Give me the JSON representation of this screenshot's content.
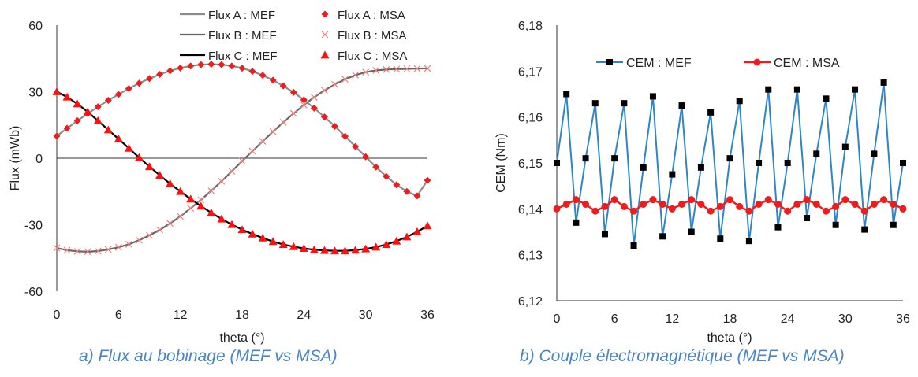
{
  "captions": {
    "a": "a) Flux au bobinage (MEF vs MSA)",
    "b": "b) Couple électromagnétique (MEF vs MSA)"
  },
  "chart_data": [
    {
      "type": "line",
      "xlabel": "theta (°)",
      "ylabel": "Flux (mWb)",
      "xlim": [
        0,
        36
      ],
      "ylim": [
        -60,
        60
      ],
      "xticks": [
        "0",
        "6",
        "12",
        "18",
        "24",
        "30",
        "36"
      ],
      "yticks": [
        "-60",
        "-30",
        "0",
        "30",
        "60"
      ],
      "legend_position": "top-right",
      "x": [
        0,
        1,
        2,
        3,
        4,
        5,
        6,
        7,
        8,
        9,
        10,
        11,
        12,
        13,
        14,
        15,
        16,
        17,
        18,
        19,
        20,
        21,
        22,
        23,
        24,
        25,
        26,
        27,
        28,
        29,
        30,
        31,
        32,
        33,
        34,
        35,
        36
      ],
      "series": [
        {
          "name": "Flux A : MEF",
          "style": "line",
          "color": "#8c8c8c",
          "values": [
            10.0,
            13.5,
            16.9,
            20.1,
            23.2,
            26.1,
            28.8,
            31.4,
            33.8,
            35.9,
            37.8,
            39.4,
            40.7,
            41.6,
            42.2,
            42.4,
            42.2,
            41.6,
            40.6,
            39.2,
            37.4,
            35.2,
            32.6,
            29.7,
            26.3,
            22.6,
            18.6,
            14.4,
            9.9,
            5.3,
            0.6,
            -4.0,
            -8.2,
            -12.0,
            -15.0,
            -17.0,
            -10.0
          ]
        },
        {
          "name": "Flux B : MEF",
          "style": "line",
          "color": "#666666",
          "values": [
            -40.5,
            -41.5,
            -42.0,
            -42.2,
            -41.9,
            -41.2,
            -40.2,
            -38.8,
            -37.0,
            -34.8,
            -32.3,
            -29.4,
            -26.2,
            -22.6,
            -18.8,
            -14.7,
            -10.4,
            -5.9,
            -1.3,
            3.2,
            7.6,
            12.0,
            16.2,
            20.2,
            24.0,
            27.5,
            30.6,
            33.3,
            35.6,
            37.5,
            38.8,
            39.6,
            40.0,
            40.2,
            40.3,
            40.4,
            40.5
          ]
        },
        {
          "name": "Flux C : MEF",
          "style": "line",
          "color": "#000000",
          "values": [
            30.0,
            27.6,
            24.5,
            20.9,
            16.9,
            12.8,
            8.7,
            4.5,
            0.3,
            -3.8,
            -7.7,
            -11.5,
            -15.0,
            -18.4,
            -21.6,
            -24.6,
            -27.4,
            -29.9,
            -32.2,
            -34.2,
            -36.0,
            -37.6,
            -38.9,
            -39.9,
            -40.7,
            -41.3,
            -41.6,
            -41.8,
            -41.8,
            -41.5,
            -40.9,
            -40.1,
            -38.9,
            -37.4,
            -35.5,
            -33.2,
            -30.5
          ]
        },
        {
          "name": "Flux A : MSA",
          "style": "marker-diamond",
          "color": "#ee1c1c",
          "values": [
            10.0,
            13.5,
            16.9,
            20.1,
            23.2,
            26.1,
            28.8,
            31.4,
            33.8,
            35.9,
            37.8,
            39.4,
            40.7,
            41.6,
            42.2,
            42.4,
            42.2,
            41.6,
            40.6,
            39.2,
            37.4,
            35.2,
            32.6,
            29.7,
            26.3,
            22.6,
            18.6,
            14.4,
            9.9,
            5.3,
            0.6,
            -4.0,
            -8.2,
            -12.0,
            -15.0,
            -17.0,
            -10.0
          ]
        },
        {
          "name": "Flux B : MSA",
          "style": "marker-x",
          "color": "#f08080",
          "values": [
            -40.5,
            -41.5,
            -42.0,
            -42.2,
            -41.9,
            -41.2,
            -40.2,
            -38.8,
            -37.0,
            -34.8,
            -32.3,
            -29.4,
            -26.2,
            -22.6,
            -18.8,
            -14.7,
            -10.4,
            -5.9,
            -1.3,
            3.2,
            7.6,
            12.0,
            16.2,
            20.2,
            24.0,
            27.5,
            30.6,
            33.3,
            35.6,
            37.5,
            38.8,
            39.6,
            40.0,
            40.2,
            40.3,
            40.4,
            40.5
          ]
        },
        {
          "name": "Flux C : MSA",
          "style": "marker-triangle",
          "color": "#ff1010",
          "values": [
            30.0,
            27.6,
            24.5,
            20.9,
            16.9,
            12.8,
            8.7,
            4.5,
            0.3,
            -3.8,
            -7.7,
            -11.5,
            -15.0,
            -18.4,
            -21.6,
            -24.6,
            -27.4,
            -29.9,
            -32.2,
            -34.2,
            -36.0,
            -37.6,
            -38.9,
            -39.9,
            -40.7,
            -41.3,
            -41.6,
            -41.8,
            -41.8,
            -41.5,
            -40.9,
            -40.1,
            -38.9,
            -37.4,
            -35.5,
            -33.2,
            -30.5
          ]
        }
      ]
    },
    {
      "type": "line",
      "xlabel": "theta (°)",
      "ylabel": "CEM (Nm)",
      "xlim": [
        0,
        36
      ],
      "ylim": [
        6.12,
        6.18
      ],
      "xticks": [
        "0",
        "6",
        "12",
        "18",
        "24",
        "30",
        "36"
      ],
      "yticks": [
        "6,12",
        "6,13",
        "6,14",
        "6,15",
        "6,16",
        "6,17",
        "6,18"
      ],
      "legend_position": "top",
      "x": [
        0,
        1,
        2,
        3,
        4,
        5,
        6,
        7,
        8,
        9,
        10,
        11,
        12,
        13,
        14,
        15,
        16,
        17,
        18,
        19,
        20,
        21,
        22,
        23,
        24,
        25,
        26,
        27,
        28,
        29,
        30,
        31,
        32,
        33,
        34,
        35,
        36
      ],
      "series": [
        {
          "name": "CEM : MEF",
          "style": "line-marker-square",
          "color": "#2e86c8",
          "marker_color": "#000000",
          "values": [
            6.15,
            6.165,
            6.137,
            6.151,
            6.163,
            6.1345,
            6.151,
            6.163,
            6.132,
            6.149,
            6.1645,
            6.134,
            6.1475,
            6.1625,
            6.135,
            6.149,
            6.161,
            6.1335,
            6.151,
            6.1635,
            6.133,
            6.15,
            6.166,
            6.136,
            6.15,
            6.166,
            6.138,
            6.152,
            6.164,
            6.1365,
            6.1535,
            6.166,
            6.1355,
            6.152,
            6.1675,
            6.1365,
            6.15
          ]
        },
        {
          "name": "CEM : MSA",
          "style": "line-marker-circle",
          "color": "#ee1c1c",
          "values": [
            6.14,
            6.141,
            6.142,
            6.141,
            6.1395,
            6.1405,
            6.142,
            6.1405,
            6.1395,
            6.141,
            6.142,
            6.141,
            6.14,
            6.141,
            6.142,
            6.141,
            6.1395,
            6.1405,
            6.142,
            6.1405,
            6.1395,
            6.141,
            6.142,
            6.141,
            6.1395,
            6.141,
            6.142,
            6.141,
            6.1395,
            6.1405,
            6.142,
            6.141,
            6.1395,
            6.141,
            6.142,
            6.141,
            6.14
          ]
        }
      ]
    }
  ]
}
